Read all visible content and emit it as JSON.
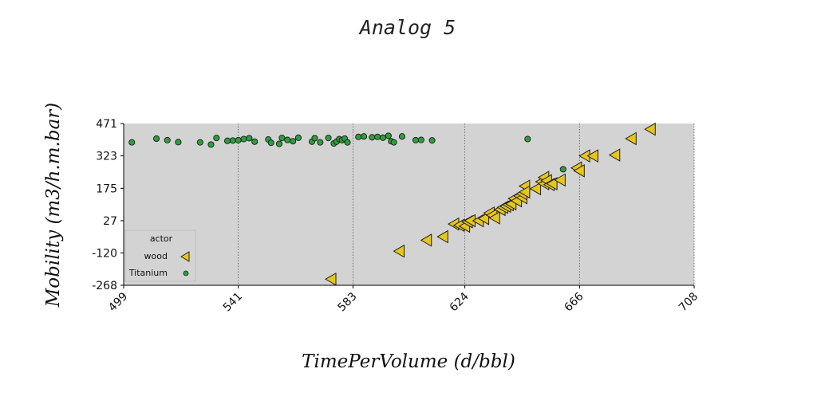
{
  "chart_data": {
    "type": "scatter",
    "title": "Analog 5",
    "xlabel": "TimePerVolume (d/bbl)",
    "ylabel": "Mobility (m3/h.m.bar)",
    "xlim": [
      499,
      708
    ],
    "ylim": [
      -268,
      471
    ],
    "x_ticks": [
      499,
      541,
      583,
      624,
      666,
      708
    ],
    "y_ticks": [
      471,
      323,
      175,
      27,
      -120,
      -268
    ],
    "x_grid": true,
    "y_grid": false,
    "plot_background": "#d3d3d3",
    "legend": {
      "title": "actor",
      "position": "lower-left"
    },
    "series": [
      {
        "name": "wood",
        "marker": "triangle-left",
        "color": "#e6c619",
        "points": [
          [
            575,
            -240
          ],
          [
            600,
            -112
          ],
          [
            610,
            -62
          ],
          [
            616,
            -46
          ],
          [
            620,
            12
          ],
          [
            622,
            6
          ],
          [
            624,
            2
          ],
          [
            625,
            22
          ],
          [
            626,
            27
          ],
          [
            629,
            27
          ],
          [
            631,
            37
          ],
          [
            633,
            62
          ],
          [
            634,
            52
          ],
          [
            635,
            40
          ],
          [
            637,
            78
          ],
          [
            638,
            88
          ],
          [
            639,
            93
          ],
          [
            640,
            100
          ],
          [
            641,
            104
          ],
          [
            642,
            128
          ],
          [
            643,
            118
          ],
          [
            644,
            140
          ],
          [
            645,
            132
          ],
          [
            645,
            150
          ],
          [
            646,
            185
          ],
          [
            646,
            158
          ],
          [
            650,
            173
          ],
          [
            652,
            205
          ],
          [
            653,
            225
          ],
          [
            653,
            196
          ],
          [
            654,
            210
          ],
          [
            655,
            192
          ],
          [
            656,
            196
          ],
          [
            659,
            213
          ],
          [
            665,
            268
          ],
          [
            666,
            255
          ],
          [
            668,
            323
          ],
          [
            671,
            323
          ],
          [
            679,
            327
          ],
          [
            685,
            402
          ],
          [
            692,
            445
          ]
        ]
      },
      {
        "name": "Titanium",
        "marker": "circle",
        "color": "#2e9e3e",
        "points": [
          [
            502,
            385
          ],
          [
            511,
            402
          ],
          [
            515,
            395
          ],
          [
            519,
            386
          ],
          [
            527,
            385
          ],
          [
            531,
            375
          ],
          [
            533,
            405
          ],
          [
            537,
            392
          ],
          [
            539,
            393
          ],
          [
            541,
            395
          ],
          [
            543,
            400
          ],
          [
            545,
            404
          ],
          [
            547,
            388
          ],
          [
            552,
            398
          ],
          [
            553,
            383
          ],
          [
            556,
            378
          ],
          [
            557,
            405
          ],
          [
            559,
            396
          ],
          [
            561,
            390
          ],
          [
            563,
            406
          ],
          [
            568,
            388
          ],
          [
            569,
            404
          ],
          [
            571,
            385
          ],
          [
            574,
            405
          ],
          [
            576,
            380
          ],
          [
            577,
            388
          ],
          [
            578,
            400
          ],
          [
            579,
            395
          ],
          [
            580,
            402
          ],
          [
            581,
            385
          ],
          [
            585,
            410
          ],
          [
            587,
            412
          ],
          [
            590,
            408
          ],
          [
            592,
            410
          ],
          [
            594,
            406
          ],
          [
            596,
            415
          ],
          [
            597,
            390
          ],
          [
            598,
            385
          ],
          [
            601,
            412
          ],
          [
            606,
            395
          ],
          [
            608,
            396
          ],
          [
            612,
            394
          ],
          [
            647,
            400
          ],
          [
            660,
            262
          ]
        ]
      }
    ]
  }
}
